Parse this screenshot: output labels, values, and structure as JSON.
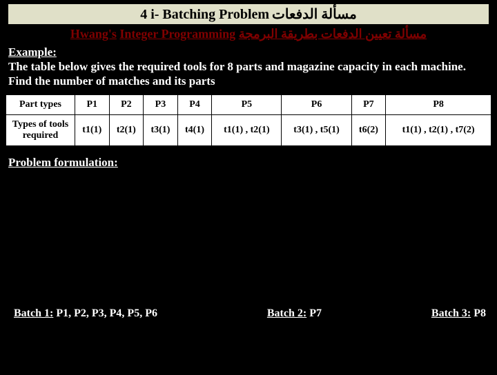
{
  "title": {
    "left": "4 i- Batching Problem",
    "arabic": "مسألة الدفعات"
  },
  "subtitle": {
    "author": "Hwang's",
    "method": "Integer Programming",
    "arabic": "مسألة تعيين الدفعات بطريقة البرمجة"
  },
  "example": {
    "label": "Example:",
    "text": "The table below gives the required tools for 8 parts and magazine capacity in each machine. Find the number of matches and its parts"
  },
  "table": {
    "row1_head": "Part types",
    "row2_head": "Types of tools required",
    "cols": [
      "P1",
      "P2",
      "P3",
      "P4",
      "P5",
      "P6",
      "P7",
      "P8"
    ],
    "tools": [
      "t1(1)",
      "t2(1)",
      "t3(1)",
      "t4(1)",
      "t1(1) , t2(1)",
      "t3(1) , t5(1)",
      "t6(2)",
      "t1(1) , t2(1) , t7(2)"
    ]
  },
  "problem_formulation": "Problem formulation:",
  "batches": {
    "b1_label": "Batch 1:",
    "b1_val": " P1, P2, P3, P4, P5, P6",
    "b2_label": "Batch 2:",
    "b2_val": " P7",
    "b3_label": "Batch 3:",
    "b3_val": " P8"
  },
  "colors": {
    "bg": "#000000",
    "title_bg": "#e0e0c8",
    "subtitle_color": "#800000",
    "text_white": "#ffffff"
  }
}
